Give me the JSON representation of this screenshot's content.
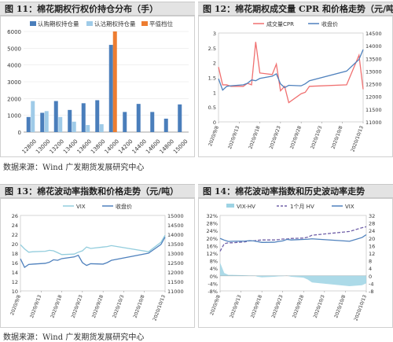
{
  "source_text": "数据来源：Wind 广发期货发展研究中心",
  "colors": {
    "call_oi": "#4a7ebb",
    "put_oi": "#9fcbe8",
    "flat": "#ed7d31",
    "cpr": "#f07070",
    "price": "#4f81bd",
    "vix": "#93cddd",
    "vix_hv_fill": "#9dd3e4",
    "hv_1m": "#7060a8",
    "vix_line": "#4f81bd",
    "axis": "#888888"
  },
  "chart_data": [
    {
      "id": "chart11",
      "type": "bar",
      "title": "图 11：棉花期权行权价持仓分布（手）",
      "categories": [
        "12800",
        "13000",
        "13200",
        "13400",
        "13600",
        "13800",
        "14000",
        "14200",
        "14400",
        "14600",
        "14800",
        "15000"
      ],
      "series": [
        {
          "name": "认购期权持仓量",
          "values": [
            900,
            1150,
            1850,
            1320,
            1720,
            1900,
            5200,
            1200,
            1680,
            1200,
            800,
            1650
          ]
        },
        {
          "name": "认沽期权持仓量",
          "values": [
            1850,
            1250,
            900,
            620,
            420,
            470,
            0,
            0,
            0,
            0,
            0,
            0
          ]
        },
        {
          "name": "平值档位",
          "values": [
            0,
            0,
            0,
            0,
            0,
            0,
            6000,
            0,
            0,
            0,
            0,
            0
          ]
        }
      ],
      "ylim": [
        0,
        6000
      ],
      "yticks": [
        0,
        1000,
        2000,
        3000,
        4000,
        5000,
        6000
      ],
      "legend": "top"
    },
    {
      "id": "chart12",
      "type": "line",
      "title": "图 12：棉花期权成交量 CPR 和价格走势（元/吨）",
      "x": [
        "2020/9/8",
        "2020/9/9",
        "2020/9/10",
        "2020/9/11",
        "2020/9/14",
        "2020/9/15",
        "2020/9/16",
        "2020/9/17",
        "2020/9/18",
        "2020/9/21",
        "2020/9/22",
        "2020/9/23",
        "2020/9/24",
        "2020/9/25",
        "2020/9/28",
        "2020/9/29",
        "2020/9/30",
        "2020/10/9",
        "2020/10/12",
        "2020/10/13"
      ],
      "xticks": [
        "2020/9/8",
        "2020/9/13",
        "2020/9/18",
        "2020/9/23",
        "2020/9/28",
        "2020/10/3",
        "2020/10/8",
        "2020/10/13"
      ],
      "series": [
        {
          "name": "成交量CPR",
          "axis": "left",
          "values": [
            1.85,
            1.25,
            1.25,
            1.2,
            1.2,
            1.3,
            1.25,
            2.7,
            1.65,
            1.6,
            1.95,
            1.05,
            1.2,
            0.65,
            0.95,
            1.0,
            1.2,
            1.25,
            2.25,
            1.1
          ]
        },
        {
          "name": "收盘价",
          "axis": "right",
          "values": [
            12700,
            12250,
            12400,
            12420,
            12460,
            12520,
            12650,
            12620,
            12710,
            12800,
            12890,
            12500,
            12350,
            12440,
            12420,
            12500,
            12620,
            13000,
            13460,
            13850
          ]
        }
      ],
      "ylim_left": [
        0,
        3
      ],
      "yticks_left": [
        0,
        0.5,
        1,
        1.5,
        2,
        2.5,
        3
      ],
      "ylim_right": [
        11000,
        14500
      ],
      "yticks_right": [
        11000,
        11500,
        12000,
        12500,
        13000,
        13500,
        14000,
        14500
      ],
      "legend": "top"
    },
    {
      "id": "chart13",
      "type": "line",
      "title": "图 13：棉花波动率指数和价格走势（元/吨）",
      "x": [
        "2020/9/8",
        "2020/9/9",
        "2020/9/10",
        "2020/9/11",
        "2020/9/14",
        "2020/9/15",
        "2020/9/16",
        "2020/9/17",
        "2020/9/18",
        "2020/9/21",
        "2020/9/22",
        "2020/9/23",
        "2020/9/24",
        "2020/9/25",
        "2020/9/28",
        "2020/9/29",
        "2020/9/30",
        "2020/10/9",
        "2020/10/12",
        "2020/10/13"
      ],
      "xticks": [
        "2020/9/8",
        "2020/9/13",
        "2020/9/18",
        "2020/9/23",
        "2020/9/28",
        "2020/10/3",
        "2020/10/8",
        "2020/10/13"
      ],
      "series": [
        {
          "name": "VIX",
          "axis": "left",
          "values": [
            19.8,
            18.9,
            18.2,
            18.3,
            18.4,
            18.6,
            18.5,
            18.1,
            17.7,
            17.8,
            18.2,
            18.5,
            19.3,
            19.0,
            19.3,
            19.4,
            19.6,
            18.3,
            20.3,
            21.8
          ]
        },
        {
          "name": "收盘价",
          "axis": "right",
          "values": [
            12700,
            12250,
            12400,
            12420,
            12460,
            12520,
            12650,
            12620,
            12710,
            12800,
            12890,
            12500,
            12350,
            12440,
            12420,
            12500,
            12620,
            13000,
            13460,
            13850
          ]
        }
      ],
      "ylim_left": [
        10,
        26
      ],
      "yticks_left": [
        10,
        12,
        14,
        16,
        18,
        20,
        22,
        24,
        26
      ],
      "ylim_right": [
        11000,
        15000
      ],
      "yticks_right": [
        11000,
        11500,
        12000,
        12500,
        13000,
        13500,
        14000,
        14500,
        15000
      ],
      "legend": "top"
    },
    {
      "id": "chart14",
      "type": "line",
      "title": "图 14：棉花波动率指数和历史波动率走势",
      "x": [
        "2020/9/8",
        "2020/9/9",
        "2020/9/10",
        "2020/9/11",
        "2020/9/14",
        "2020/9/15",
        "2020/9/16",
        "2020/9/17",
        "2020/9/18",
        "2020/9/21",
        "2020/9/22",
        "2020/9/23",
        "2020/9/24",
        "2020/9/25",
        "2020/9/28",
        "2020/9/29",
        "2020/9/30",
        "2020/10/9",
        "2020/10/12",
        "2020/10/13"
      ],
      "xticks": [
        "2020/9/8",
        "2020/9/13",
        "2020/9/18",
        "2020/9/23",
        "2020/9/28",
        "2020/10/3",
        "2020/10/8",
        "2020/10/13"
      ],
      "series": [
        {
          "name": "VIX-HV",
          "axis": "left",
          "kind": "area",
          "values": [
            7,
            1.5,
            0.5,
            0.5,
            0.3,
            0.2,
            0.2,
            -0.5,
            -0.8,
            -0.5,
            -0.3,
            -0.2,
            0,
            -0.5,
            -1.0,
            -2.0,
            -3.5,
            -5.5,
            -5.0,
            -4.0
          ]
        },
        {
          "name": "1个月 HV",
          "axis": "right",
          "kind": "dashed",
          "values": [
            13,
            17,
            17.5,
            17.5,
            18,
            18.5,
            18.5,
            18.8,
            19,
            19,
            19.2,
            19.5,
            19.5,
            19.8,
            20,
            20.5,
            21.5,
            23.5,
            25.5,
            26
          ]
        },
        {
          "name": "VIX",
          "axis": "right",
          "kind": "line",
          "values": [
            19.8,
            18.9,
            18.2,
            18.3,
            18.4,
            18.6,
            18.5,
            18.1,
            17.7,
            17.8,
            18.2,
            18.5,
            19.3,
            19.0,
            19.3,
            19.4,
            19.6,
            18.3,
            20.3,
            21.8
          ]
        }
      ],
      "ylim_left": [
        -8,
        32
      ],
      "yticks_left": [
        "-8%",
        "-4%",
        "0%",
        "4%",
        "8%",
        "12%",
        "16%",
        "20%",
        "24%",
        "28%",
        "32%"
      ],
      "ylim_right": [
        -8,
        32
      ],
      "yticks_right": [
        -8,
        -4,
        0,
        4,
        8,
        12,
        16,
        20,
        24,
        28,
        32
      ],
      "legend": "top"
    }
  ]
}
